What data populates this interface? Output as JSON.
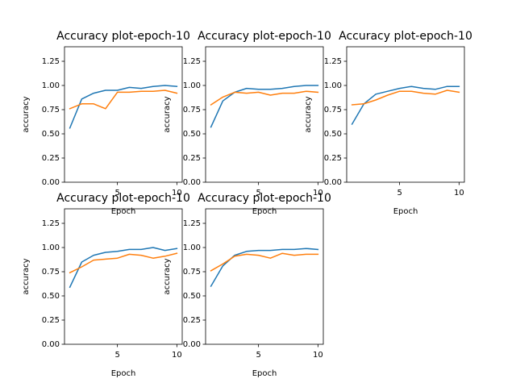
{
  "colors": {
    "series_1": "#1f77b4",
    "series_2": "#ff7f0e",
    "axes": "#000000",
    "background": "#ffffff"
  },
  "chart_data": [
    {
      "type": "line",
      "title": "Accuracy plot-epoch-10",
      "xlabel": "Epoch",
      "ylabel": "accuracy",
      "xlim": [
        0.55,
        10.45
      ],
      "ylim": [
        0,
        1.4
      ],
      "xticks": [
        5,
        10
      ],
      "yticks": [
        "0.00",
        "0.25",
        "0.50",
        "0.75",
        "1.00",
        "1.25"
      ],
      "grid": false,
      "x": [
        1,
        2,
        3,
        4,
        5,
        6,
        7,
        8,
        9,
        10
      ],
      "series": [
        {
          "values": [
            0.56,
            0.86,
            0.92,
            0.95,
            0.95,
            0.98,
            0.97,
            0.99,
            1.0,
            0.99
          ]
        },
        {
          "values": [
            0.76,
            0.81,
            0.81,
            0.76,
            0.93,
            0.93,
            0.94,
            0.94,
            0.95,
            0.92
          ]
        }
      ]
    },
    {
      "type": "line",
      "title": "Accuracy plot-epoch-10",
      "xlabel": "Epoch",
      "ylabel": "accuracy",
      "xlim": [
        0.55,
        10.45
      ],
      "ylim": [
        0,
        1.4
      ],
      "xticks": [
        5,
        10
      ],
      "yticks": [
        "0.00",
        "0.25",
        "0.50",
        "0.75",
        "1.00",
        "1.25"
      ],
      "grid": false,
      "x": [
        1,
        2,
        3,
        4,
        5,
        6,
        7,
        8,
        9,
        10
      ],
      "series": [
        {
          "values": [
            0.57,
            0.84,
            0.93,
            0.97,
            0.96,
            0.96,
            0.97,
            0.99,
            1.0,
            1.0
          ]
        },
        {
          "values": [
            0.8,
            0.88,
            0.93,
            0.92,
            0.93,
            0.9,
            0.92,
            0.92,
            0.94,
            0.93
          ]
        }
      ]
    },
    {
      "type": "line",
      "title": "Accuracy plot-epoch-10",
      "xlabel": "Epoch",
      "ylabel": "accuracy",
      "xlim": [
        0.55,
        10.45
      ],
      "ylim": [
        0,
        1.4
      ],
      "xticks": [
        5,
        10
      ],
      "yticks": [
        "0.00",
        "0.25",
        "0.50",
        "0.75",
        "1.00",
        "1.25"
      ],
      "grid": false,
      "x": [
        1,
        2,
        3,
        4,
        5,
        6,
        7,
        8,
        9,
        10
      ],
      "series": [
        {
          "values": [
            0.6,
            0.81,
            0.91,
            0.94,
            0.97,
            0.99,
            0.97,
            0.96,
            0.99,
            0.99
          ]
        },
        {
          "values": [
            0.8,
            0.81,
            0.85,
            0.9,
            0.94,
            0.94,
            0.92,
            0.91,
            0.95,
            0.93
          ]
        }
      ]
    },
    {
      "type": "line",
      "title": "Accuracy plot-epoch-10",
      "xlabel": "Epoch",
      "ylabel": "accuracy",
      "xlim": [
        0.55,
        10.45
      ],
      "ylim": [
        0,
        1.4
      ],
      "xticks": [
        5,
        10
      ],
      "yticks": [
        "0.00",
        "0.25",
        "0.50",
        "0.75",
        "1.00",
        "1.25"
      ],
      "grid": false,
      "x": [
        1,
        2,
        3,
        4,
        5,
        6,
        7,
        8,
        9,
        10
      ],
      "series": [
        {
          "values": [
            0.59,
            0.85,
            0.92,
            0.95,
            0.96,
            0.98,
            0.98,
            1.0,
            0.97,
            0.99
          ]
        },
        {
          "values": [
            0.74,
            0.8,
            0.87,
            0.88,
            0.89,
            0.93,
            0.92,
            0.89,
            0.91,
            0.94
          ]
        }
      ]
    },
    {
      "type": "line",
      "title": "Accuracy plot-epoch-10",
      "xlabel": "Epoch",
      "ylabel": "accuracy",
      "xlim": [
        0.55,
        10.45
      ],
      "ylim": [
        0,
        1.4
      ],
      "xticks": [
        5,
        10
      ],
      "yticks": [
        "0.00",
        "0.25",
        "0.50",
        "0.75",
        "1.00",
        "1.25"
      ],
      "grid": false,
      "x": [
        1,
        2,
        3,
        4,
        5,
        6,
        7,
        8,
        9,
        10
      ],
      "series": [
        {
          "values": [
            0.6,
            0.81,
            0.92,
            0.96,
            0.97,
            0.97,
            0.98,
            0.98,
            0.99,
            0.98
          ]
        },
        {
          "values": [
            0.76,
            0.83,
            0.91,
            0.93,
            0.92,
            0.89,
            0.94,
            0.92,
            0.93,
            0.93
          ]
        }
      ]
    }
  ]
}
